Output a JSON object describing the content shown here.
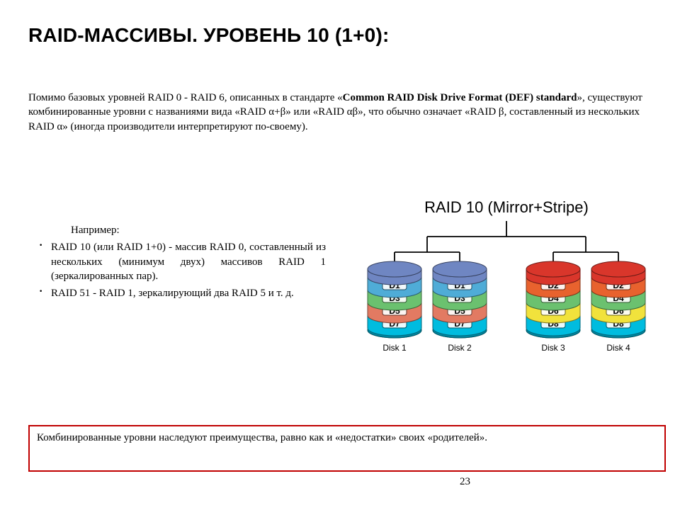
{
  "title": "RAID-МАССИВЫ. УРОВЕНЬ 10 (1+0):",
  "intro": {
    "part1": "Помимо базовых уровней RAID 0 - RAID 6, описанных в стандарте «",
    "bold1": "Common RAID Disk Drive Format (DEF) standard",
    "part2": "», существуют комбинированные уровни с названиями вида «RAID α+β» или «RAID αβ», что обычно означает «RAID β, составленный из нескольких RAID α» (иногда производители интерпретируют по-своему)."
  },
  "examples_lead": "Например:",
  "bullet1": "RAID 10 (или RAID 1+0) - массив RAID 0, составленный из нескольких (минимум двух) массивов RAID 1 (зеркалированных пар).",
  "bullet2": "RAID 51 - RAID 1, зеркалирующий два RAID 5 и т. д.",
  "bottom": "Комбинированные уровни наследуют преимущества, равно как и «недостатки» своих «родителей».",
  "page_number": "23",
  "diagram": {
    "title": "RAID 10 (Mirror+Stripe)",
    "title_fontsize": 22,
    "title_fontfamily": "Arial",
    "line_color": "#000000",
    "line_width": 1.8,
    "bottom_box_border": "#c00000",
    "disk_label_font": "Arial",
    "disk_label_fontsize": 12,
    "segment_label_fontsize": 12,
    "segment_label_color": "#000000",
    "seg_height": 18,
    "cyl_width": 76,
    "cyl_gap_pair": 16,
    "pair_gap": 56,
    "disks": [
      {
        "label": "Disk 1",
        "segments": [
          "D1",
          "D3",
          "D5",
          "D7"
        ],
        "colors": [
          "#4facd7",
          "#6bc16f",
          "#e27a62",
          "#00bcdf"
        ]
      },
      {
        "label": "Disk 2",
        "segments": [
          "D1",
          "D3",
          "D5",
          "D7"
        ],
        "colors": [
          "#4facd7",
          "#6bc16f",
          "#e27a62",
          "#00bcdf"
        ]
      },
      {
        "label": "Disk 3",
        "segments": [
          "D2",
          "D4",
          "D6",
          "D8"
        ],
        "colors": [
          "#e8622e",
          "#6bc16f",
          "#f1e23c",
          "#00bcdf"
        ]
      },
      {
        "label": "Disk 4",
        "segments": [
          "D2",
          "D4",
          "D6",
          "D8"
        ],
        "colors": [
          "#e8622e",
          "#6bc16f",
          "#f1e23c",
          "#00bcdf"
        ]
      }
    ],
    "top_colors": [
      "#6f86c2",
      "#6f86c2",
      "#d9362b",
      "#d9362b"
    ]
  }
}
